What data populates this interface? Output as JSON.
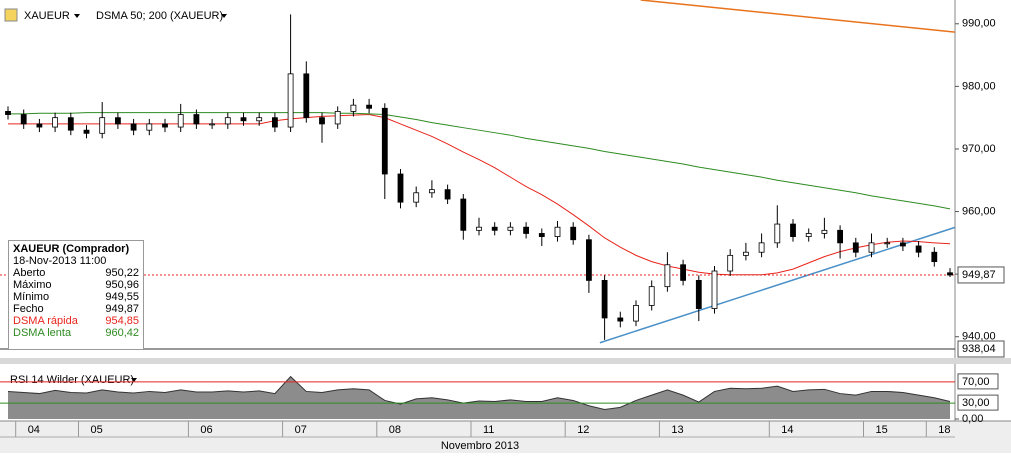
{
  "header": {
    "symbol": "XAUEUR",
    "indicator": "DSMA 50; 200 (XAUEUR)"
  },
  "chart_data": {
    "type": "candlestick",
    "categories": [
      null,
      "04",
      null,
      null,
      null,
      "05",
      null,
      null,
      null,
      null,
      null,
      null,
      "06",
      null,
      null,
      null,
      null,
      null,
      "07",
      null,
      null,
      null,
      null,
      null,
      "08",
      null,
      null,
      null,
      null,
      null,
      "11",
      null,
      null,
      null,
      null,
      null,
      "12",
      null,
      null,
      null,
      null,
      null,
      "13",
      null,
      null,
      null,
      null,
      null,
      null,
      "14",
      null,
      null,
      null,
      null,
      null,
      "15",
      null,
      null,
      null,
      "18",
      null
    ],
    "x_axis_title": "Novembro 2013",
    "open": [
      976,
      975.5,
      974,
      973.5,
      975,
      973,
      972.5,
      975,
      974,
      973,
      974,
      973.5,
      975.5,
      974,
      974,
      975,
      974.5,
      975,
      973.5,
      982,
      975,
      974,
      976,
      977,
      976.5,
      966,
      961.5,
      963,
      963.5,
      962,
      957,
      957.5,
      957,
      957.5,
      956.5,
      956,
      957.5,
      955.5,
      949,
      943,
      942.5,
      945,
      948,
      951.5,
      949,
      944.5,
      950.5,
      953,
      953.5,
      955,
      958,
      956,
      956.5,
      957,
      955,
      953.5,
      955,
      955,
      954.5,
      953.5,
      950.22
    ],
    "high": [
      976.8,
      976.3,
      974.8,
      975.8,
      975.8,
      973.8,
      977.5,
      975.8,
      974.8,
      974.8,
      974.8,
      977.2,
      976.3,
      974.8,
      975.8,
      975.8,
      975.8,
      975.8,
      991.5,
      984,
      975.8,
      976.8,
      978,
      978,
      977.3,
      966.8,
      964,
      965,
      964.3,
      962.8,
      959,
      958.3,
      958.3,
      958.3,
      957.3,
      958.5,
      958.3,
      956.3,
      949.8,
      944,
      945.8,
      949,
      953.5,
      952.3,
      949.8,
      951.3,
      954,
      955,
      956.5,
      961,
      958.8,
      957.3,
      959,
      957.8,
      955.8,
      956.5,
      955.8,
      955.8,
      955.3,
      954.3,
      950.96
    ],
    "low": [
      974.7,
      973.2,
      972.7,
      972.7,
      972.2,
      971.7,
      971.7,
      973.2,
      972.2,
      972.2,
      972.7,
      972.7,
      973.2,
      973.2,
      973.2,
      973.7,
      973.7,
      972.7,
      972.7,
      974.2,
      971,
      973.2,
      975.2,
      975.7,
      962,
      960.5,
      960.7,
      962.2,
      961.2,
      955.5,
      956.2,
      956.2,
      956.2,
      955.7,
      954.5,
      955.2,
      954.7,
      947,
      939.5,
      941.5,
      941.7,
      944.2,
      947.2,
      948.2,
      942.5,
      943.7,
      949.7,
      952.2,
      952.7,
      954.2,
      955.2,
      955.2,
      955.7,
      952.5,
      952.7,
      952.7,
      954.2,
      953.7,
      952.7,
      951.2,
      949.55
    ],
    "close": [
      975.5,
      974,
      973.5,
      975,
      973,
      972.5,
      975,
      974,
      973,
      974,
      973.5,
      975.5,
      974,
      974,
      975,
      974.5,
      975,
      973.5,
      982,
      975,
      974,
      976,
      977,
      976.5,
      966,
      961.5,
      963,
      963.5,
      962,
      957,
      957.5,
      957,
      957.5,
      956.5,
      956,
      957.5,
      955.5,
      949,
      943,
      942.5,
      945,
      948,
      951.5,
      949,
      944.5,
      950.5,
      953,
      953.5,
      955,
      958,
      956,
      956.5,
      957,
      955,
      953.5,
      955,
      955,
      954.5,
      953.5,
      952,
      949.87
    ],
    "up_color": "#ffffff",
    "down_color": "#000000",
    "series": [
      {
        "name": "DSMA rápida",
        "color": "#e8241c",
        "values": [
          974,
          974,
          974,
          974,
          974,
          974,
          974,
          974,
          974,
          974,
          974,
          974,
          974,
          974,
          974,
          974,
          974,
          974.5,
          974.8,
          975,
          975.2,
          975.3,
          975.4,
          975.5,
          975,
          974,
          973,
          972,
          970.8,
          969.5,
          968.3,
          967,
          965.5,
          964,
          962.7,
          961.2,
          959.5,
          957.7,
          955.8,
          954.3,
          953,
          952,
          951.3,
          950.8,
          950.3,
          950,
          949.9,
          949.9,
          949.9,
          950.2,
          950.8,
          951.8,
          952.8,
          953.6,
          954.2,
          954.7,
          955.1,
          955.3,
          955.2,
          955,
          954.85
        ]
      },
      {
        "name": "DSMA lenta",
        "color": "#2e8b22",
        "values": [
          975.6,
          975.6,
          975.7,
          975.7,
          975.7,
          975.8,
          975.8,
          975.8,
          975.8,
          975.8,
          975.8,
          975.8,
          975.8,
          975.8,
          975.8,
          975.8,
          975.8,
          975.8,
          975.8,
          975.8,
          975.8,
          975.7,
          975.7,
          975.6,
          975.5,
          975.1,
          974.7,
          974.2,
          973.8,
          973.4,
          973,
          972.6,
          972.2,
          971.7,
          971.3,
          970.9,
          970.5,
          970.1,
          969.6,
          969.2,
          968.8,
          968.4,
          968,
          967.6,
          967.1,
          966.7,
          966.3,
          965.9,
          965.5,
          965,
          964.6,
          964.2,
          963.8,
          963.4,
          963,
          962.5,
          962.1,
          961.7,
          961.3,
          960.9,
          960.42
        ]
      }
    ],
    "trendlines": [
      {
        "color": "#e8731c",
        "x": [
          40.3,
          60.6
        ],
        "y": [
          993.8,
          988.6
        ]
      },
      {
        "color": "#4a90c8",
        "x": [
          37.7,
          60.6
        ],
        "y": [
          939.04,
          957.7
        ]
      }
    ],
    "last_price": {
      "value": 949.87,
      "label": "949,87"
    },
    "ylim": [
      938.04,
      993.8
    ],
    "ylim_label": "938,04",
    "yticks": [
      {
        "value": 940,
        "label": "940,00"
      },
      {
        "value": 950,
        "label": "950,00"
      },
      {
        "value": 960,
        "label": "960,00"
      },
      {
        "value": 970,
        "label": "970,00"
      },
      {
        "value": 980,
        "label": "980,00"
      },
      {
        "value": 990,
        "label": "990,00"
      }
    ],
    "rsi": {
      "title": "RSI 14 Wilder (XAUEUR)",
      "values": [
        52,
        50,
        48,
        54,
        50,
        49,
        55,
        51,
        49,
        52,
        50,
        55,
        51,
        51,
        53,
        51,
        53,
        48,
        80,
        52,
        50,
        55,
        57,
        55,
        35,
        28,
        38,
        40,
        36,
        30,
        34,
        33,
        36,
        33,
        33,
        40,
        35,
        25,
        18,
        22,
        35,
        45,
        55,
        45,
        32,
        52,
        58,
        57,
        58,
        62,
        52,
        55,
        56,
        48,
        45,
        52,
        52,
        50,
        45,
        40,
        33
      ],
      "ylim": [
        0,
        100
      ],
      "yticks": [
        {
          "value": 0,
          "label": "0,00"
        },
        {
          "value": 30,
          "label": "30,00"
        },
        {
          "value": 70,
          "label": "70,00"
        }
      ]
    }
  },
  "info": {
    "title": "XAUEUR (Comprador)",
    "date": "18-Nov-2013 11:00",
    "rows": [
      [
        "Aberto",
        "950,22"
      ],
      [
        "Máximo",
        "950,96"
      ],
      [
        "Mínimo",
        "949,55"
      ],
      [
        "Fecho",
        "949,87"
      ],
      [
        "DSMA rápida",
        "954,85"
      ],
      [
        "DSMA lenta",
        "960,42"
      ]
    ]
  }
}
